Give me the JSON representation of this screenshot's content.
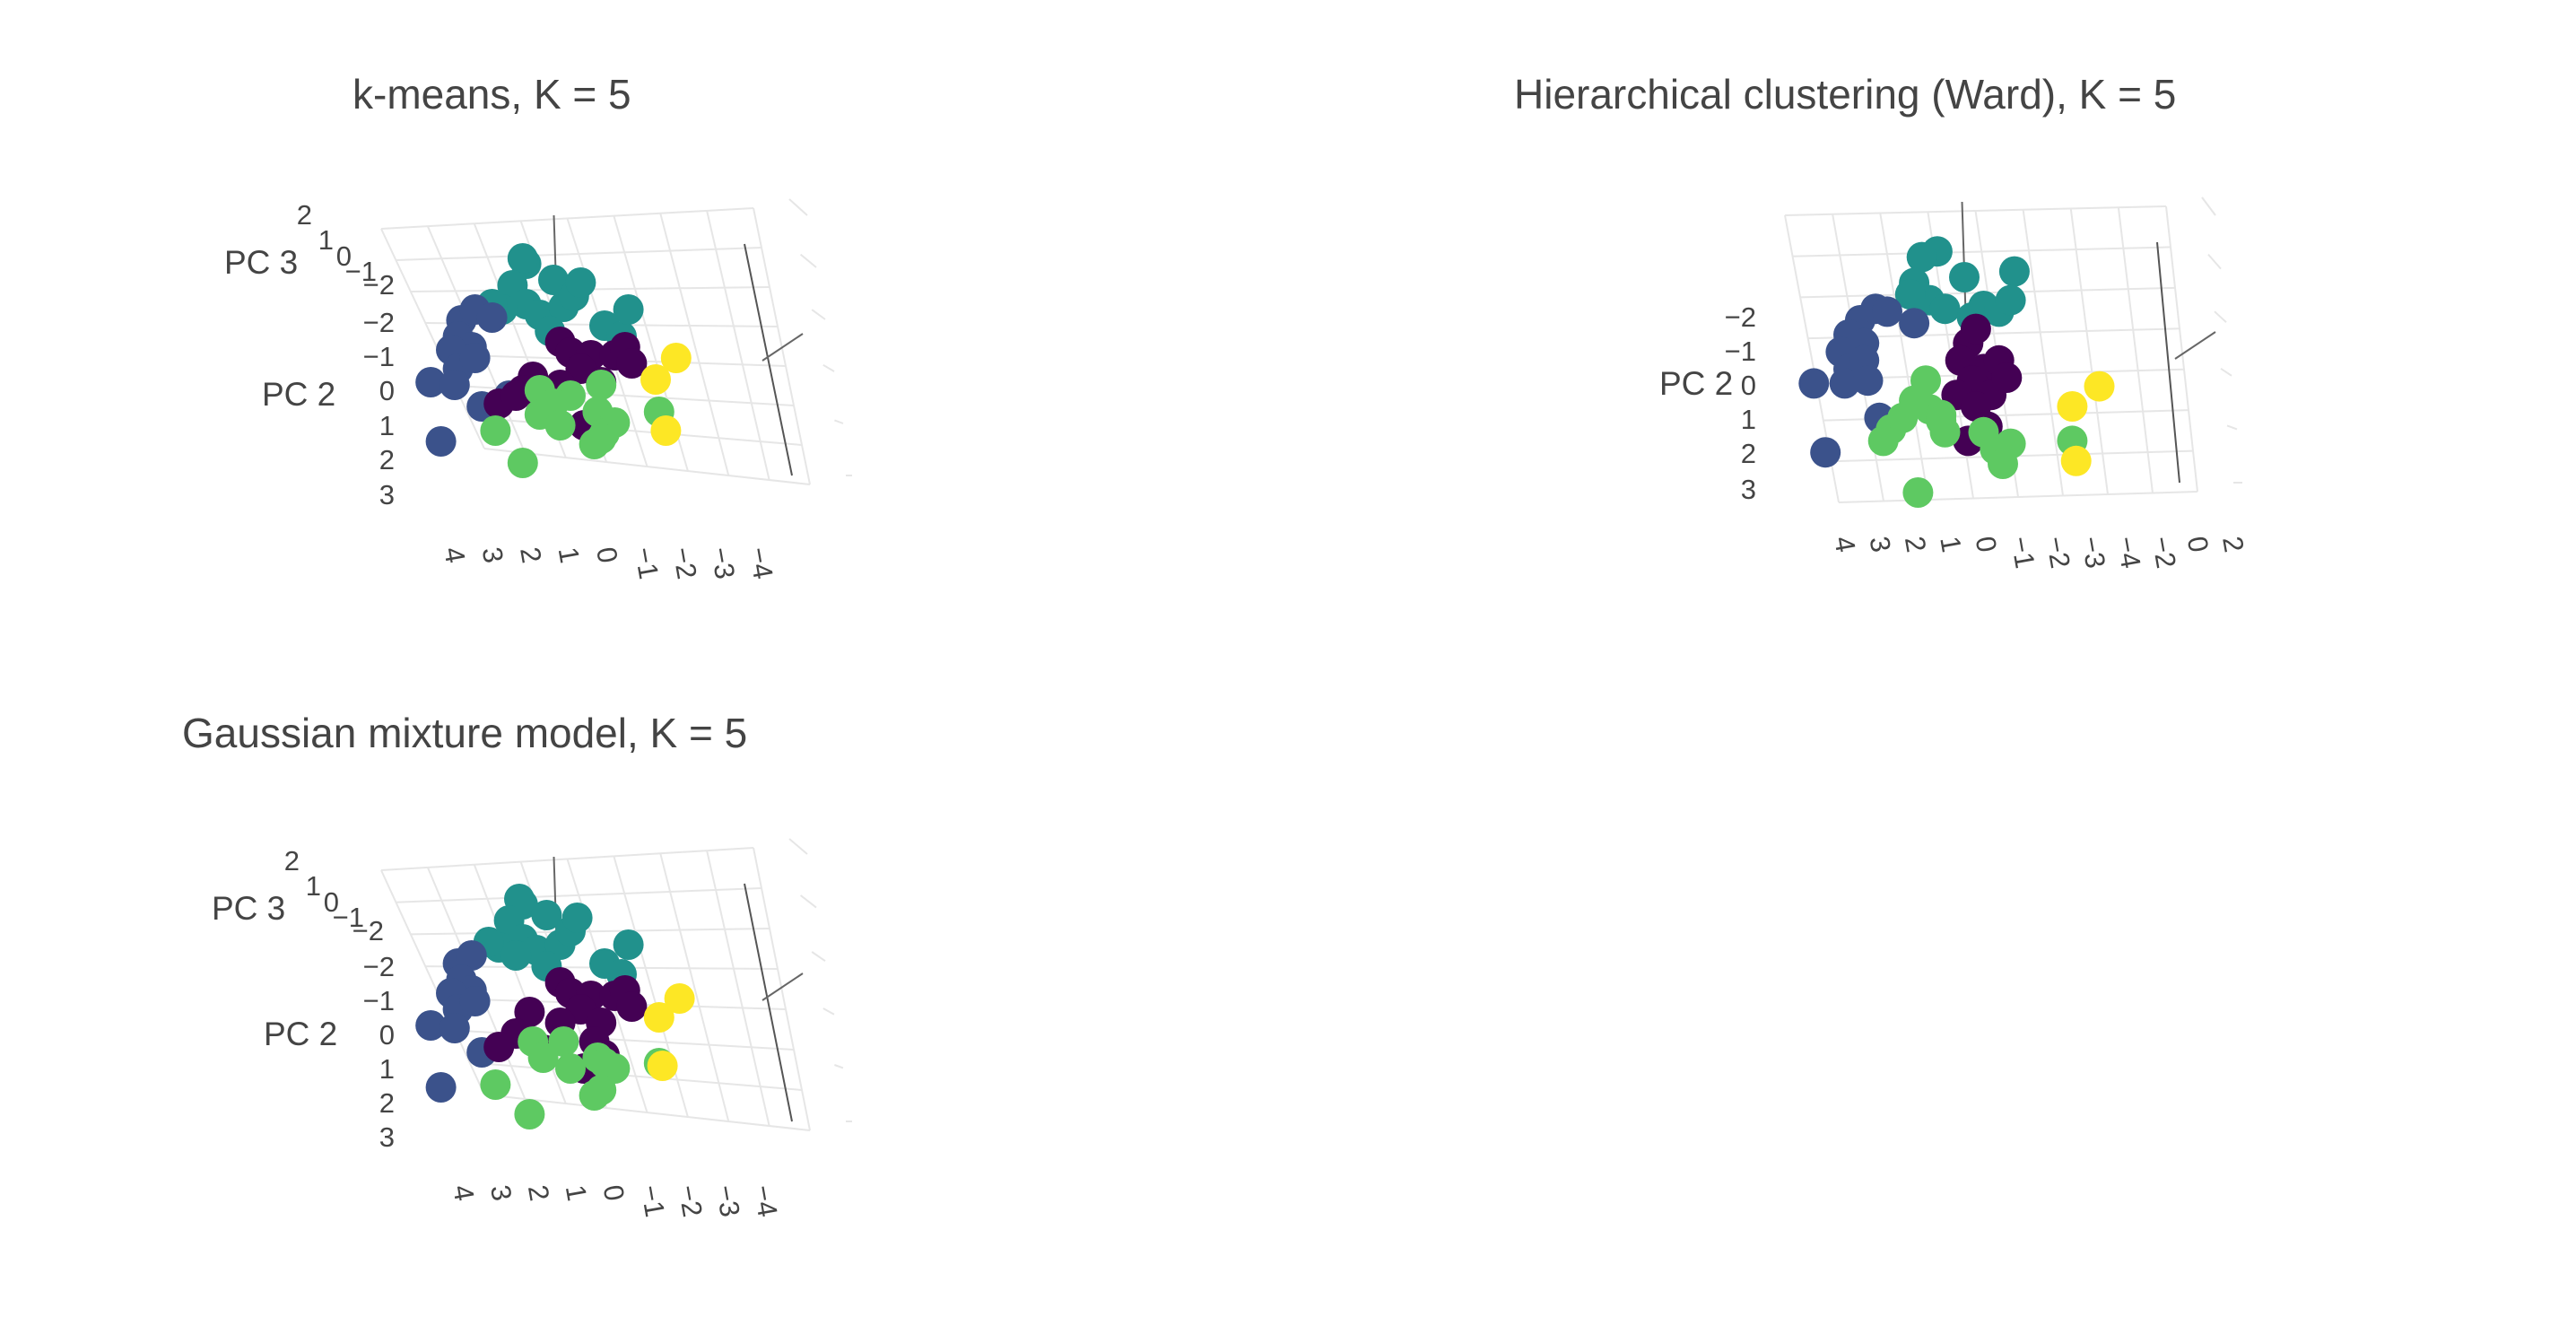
{
  "colors": {
    "c0": "#440154",
    "c1": "#3b528b",
    "c2": "#21918c",
    "c3": "#5ec962",
    "c4": "#fde725"
  },
  "chart_data": [
    {
      "type": "scatter",
      "title": "k-means, K = 5",
      "axis_titles": {
        "z": "PC 3",
        "y": "PC 2"
      },
      "ticks": {
        "z": [
          "2",
          "1",
          "0",
          "−1",
          "−2"
        ],
        "y": [
          "−2",
          "−1",
          "0",
          "1",
          "2",
          "3"
        ],
        "x": [
          "4",
          "3",
          "2",
          "1",
          "0",
          "−1",
          "−2",
          "−3",
          "−4"
        ]
      },
      "points": [
        {
          "u": 0.32,
          "v": 0.13,
          "c": 2
        },
        {
          "u": 0.31,
          "v": 0.11,
          "c": 2
        },
        {
          "u": 0.4,
          "v": 0.19,
          "c": 2
        },
        {
          "u": 0.28,
          "v": 0.21,
          "c": 2
        },
        {
          "u": 0.32,
          "v": 0.28,
          "c": 2
        },
        {
          "u": 0.36,
          "v": 0.32,
          "c": 2
        },
        {
          "u": 0.43,
          "v": 0.29,
          "c": 2
        },
        {
          "u": 0.46,
          "v": 0.25,
          "c": 2
        },
        {
          "u": 0.48,
          "v": 0.2,
          "c": 2
        },
        {
          "u": 0.39,
          "v": 0.38,
          "c": 2
        },
        {
          "u": 0.25,
          "v": 0.3,
          "c": 2
        },
        {
          "u": 0.22,
          "v": 0.28,
          "c": 2
        },
        {
          "u": 0.55,
          "v": 0.36,
          "c": 2
        },
        {
          "u": 0.6,
          "v": 0.4,
          "c": 2
        },
        {
          "u": 0.62,
          "v": 0.3,
          "c": 2
        },
        {
          "u": 0.13,
          "v": 0.34,
          "c": 1
        },
        {
          "u": 0.17,
          "v": 0.3,
          "c": 1
        },
        {
          "u": 0.22,
          "v": 0.33,
          "c": 1
        },
        {
          "u": 0.12,
          "v": 0.4,
          "c": 1
        },
        {
          "u": 0.16,
          "v": 0.44,
          "c": 1
        },
        {
          "u": 0.1,
          "v": 0.45,
          "c": 1
        },
        {
          "u": 0.12,
          "v": 0.52,
          "c": 1
        },
        {
          "u": 0.17,
          "v": 0.48,
          "c": 1
        },
        {
          "u": 0.04,
          "v": 0.57,
          "c": 1
        },
        {
          "u": 0.11,
          "v": 0.58,
          "c": 1
        },
        {
          "u": 0.19,
          "v": 0.66,
          "c": 1
        },
        {
          "u": 0.27,
          "v": 0.62,
          "c": 1
        },
        {
          "u": 0.07,
          "v": 0.79,
          "c": 1
        },
        {
          "u": 0.42,
          "v": 0.42,
          "c": 0
        },
        {
          "u": 0.45,
          "v": 0.46,
          "c": 0
        },
        {
          "u": 0.51,
          "v": 0.47,
          "c": 0
        },
        {
          "u": 0.48,
          "v": 0.52,
          "c": 0
        },
        {
          "u": 0.54,
          "v": 0.57,
          "c": 0
        },
        {
          "u": 0.42,
          "v": 0.58,
          "c": 0
        },
        {
          "u": 0.58,
          "v": 0.47,
          "c": 0
        },
        {
          "u": 0.61,
          "v": 0.44,
          "c": 0
        },
        {
          "u": 0.63,
          "v": 0.5,
          "c": 0
        },
        {
          "u": 0.34,
          "v": 0.55,
          "c": 0
        },
        {
          "u": 0.31,
          "v": 0.6,
          "c": 0
        },
        {
          "u": 0.24,
          "v": 0.65,
          "c": 0
        },
        {
          "u": 0.29,
          "v": 0.62,
          "c": 0
        },
        {
          "u": 0.53,
          "v": 0.7,
          "c": 0
        },
        {
          "u": 0.49,
          "v": 0.73,
          "c": 0
        },
        {
          "u": 0.36,
          "v": 0.6,
          "c": 3
        },
        {
          "u": 0.45,
          "v": 0.62,
          "c": 3
        },
        {
          "u": 0.4,
          "v": 0.65,
          "c": 3
        },
        {
          "u": 0.36,
          "v": 0.69,
          "c": 3
        },
        {
          "u": 0.54,
          "v": 0.58,
          "c": 3
        },
        {
          "u": 0.53,
          "v": 0.68,
          "c": 3
        },
        {
          "u": 0.58,
          "v": 0.72,
          "c": 3
        },
        {
          "u": 0.55,
          "v": 0.76,
          "c": 3
        },
        {
          "u": 0.42,
          "v": 0.73,
          "c": 3
        },
        {
          "u": 0.23,
          "v": 0.75,
          "c": 3
        },
        {
          "u": 0.52,
          "v": 0.8,
          "c": 3
        },
        {
          "u": 0.54,
          "v": 0.78,
          "c": 3
        },
        {
          "u": 0.31,
          "v": 0.87,
          "c": 3
        },
        {
          "u": 0.71,
          "v": 0.68,
          "c": 3
        },
        {
          "u": 0.76,
          "v": 0.48,
          "c": 4
        },
        {
          "u": 0.7,
          "v": 0.56,
          "c": 4
        },
        {
          "u": 0.73,
          "v": 0.75,
          "c": 4
        }
      ]
    },
    {
      "type": "scatter",
      "title": "Hierarchical clustering (Ward), K = 5",
      "axis_titles": {
        "z": "",
        "y": "PC 2"
      },
      "ticks": {
        "z": [],
        "y": [
          "−2",
          "−1",
          "0",
          "1",
          "2",
          "3"
        ],
        "x": [
          "4",
          "3",
          "2",
          "1",
          "0",
          "−1",
          "−2",
          "−3",
          "−4",
          "−2",
          "0",
          "2"
        ]
      },
      "points": [
        {
          "u": 0.43,
          "v": 0.11,
          "c": 2
        },
        {
          "u": 0.39,
          "v": 0.13,
          "c": 2
        },
        {
          "u": 0.5,
          "v": 0.2,
          "c": 2
        },
        {
          "u": 0.37,
          "v": 0.22,
          "c": 2
        },
        {
          "u": 0.41,
          "v": 0.28,
          "c": 2
        },
        {
          "u": 0.45,
          "v": 0.31,
          "c": 2
        },
        {
          "u": 0.52,
          "v": 0.34,
          "c": 2
        },
        {
          "u": 0.55,
          "v": 0.3,
          "c": 2
        },
        {
          "u": 0.59,
          "v": 0.32,
          "c": 2
        },
        {
          "u": 0.36,
          "v": 0.26,
          "c": 2
        },
        {
          "u": 0.63,
          "v": 0.18,
          "c": 2
        },
        {
          "u": 0.62,
          "v": 0.28,
          "c": 2
        },
        {
          "u": 0.23,
          "v": 0.35,
          "c": 1
        },
        {
          "u": 0.27,
          "v": 0.31,
          "c": 1
        },
        {
          "u": 0.3,
          "v": 0.32,
          "c": 1
        },
        {
          "u": 0.2,
          "v": 0.4,
          "c": 1
        },
        {
          "u": 0.24,
          "v": 0.43,
          "c": 1
        },
        {
          "u": 0.18,
          "v": 0.46,
          "c": 1
        },
        {
          "u": 0.2,
          "v": 0.52,
          "c": 1
        },
        {
          "u": 0.24,
          "v": 0.49,
          "c": 1
        },
        {
          "u": 0.11,
          "v": 0.57,
          "c": 1
        },
        {
          "u": 0.19,
          "v": 0.57,
          "c": 1
        },
        {
          "u": 0.25,
          "v": 0.56,
          "c": 1
        },
        {
          "u": 0.14,
          "v": 0.81,
          "c": 1
        },
        {
          "u": 0.28,
          "v": 0.69,
          "c": 1
        },
        {
          "u": 0.37,
          "v": 0.36,
          "c": 1
        },
        {
          "u": 0.51,
          "v": 0.43,
          "c": 0
        },
        {
          "u": 0.49,
          "v": 0.49,
          "c": 0
        },
        {
          "u": 0.55,
          "v": 0.52,
          "c": 0
        },
        {
          "u": 0.52,
          "v": 0.56,
          "c": 0
        },
        {
          "u": 0.57,
          "v": 0.61,
          "c": 0
        },
        {
          "u": 0.48,
          "v": 0.61,
          "c": 0
        },
        {
          "u": 0.59,
          "v": 0.49,
          "c": 0
        },
        {
          "u": 0.61,
          "v": 0.55,
          "c": 0
        },
        {
          "u": 0.53,
          "v": 0.65,
          "c": 0
        },
        {
          "u": 0.56,
          "v": 0.72,
          "c": 0
        },
        {
          "u": 0.51,
          "v": 0.77,
          "c": 0
        },
        {
          "u": 0.53,
          "v": 0.38,
          "c": 0
        },
        {
          "u": 0.4,
          "v": 0.56,
          "c": 3
        },
        {
          "u": 0.37,
          "v": 0.63,
          "c": 3
        },
        {
          "u": 0.41,
          "v": 0.66,
          "c": 3
        },
        {
          "u": 0.34,
          "v": 0.69,
          "c": 3
        },
        {
          "u": 0.44,
          "v": 0.68,
          "c": 3
        },
        {
          "u": 0.31,
          "v": 0.73,
          "c": 3
        },
        {
          "u": 0.29,
          "v": 0.77,
          "c": 3
        },
        {
          "u": 0.45,
          "v": 0.74,
          "c": 3
        },
        {
          "u": 0.55,
          "v": 0.74,
          "c": 3
        },
        {
          "u": 0.58,
          "v": 0.8,
          "c": 3
        },
        {
          "u": 0.6,
          "v": 0.85,
          "c": 3
        },
        {
          "u": 0.62,
          "v": 0.78,
          "c": 3
        },
        {
          "u": 0.38,
          "v": 0.95,
          "c": 3
        },
        {
          "u": 0.44,
          "v": 0.7,
          "c": 3
        },
        {
          "u": 0.78,
          "v": 0.77,
          "c": 3
        },
        {
          "u": 0.85,
          "v": 0.58,
          "c": 4
        },
        {
          "u": 0.78,
          "v": 0.65,
          "c": 4
        },
        {
          "u": 0.79,
          "v": 0.84,
          "c": 4
        }
      ]
    },
    {
      "type": "scatter",
      "title": "Gaussian mixture model, K = 5",
      "axis_titles": {
        "z": "PC 3",
        "y": "PC 2"
      },
      "ticks": {
        "z": [
          "2",
          "1",
          "0",
          "−1",
          "−2"
        ],
        "y": [
          "−2",
          "−1",
          "0",
          "1",
          "2",
          "3"
        ],
        "x": [
          "4",
          "3",
          "2",
          "1",
          "0",
          "−1",
          "−2",
          "−3",
          "−4"
        ]
      },
      "points": [
        {
          "u": 0.31,
          "v": 0.11,
          "c": 2
        },
        {
          "u": 0.3,
          "v": 0.09,
          "c": 2
        },
        {
          "u": 0.38,
          "v": 0.15,
          "c": 2
        },
        {
          "u": 0.27,
          "v": 0.17,
          "c": 2
        },
        {
          "u": 0.31,
          "v": 0.24,
          "c": 2
        },
        {
          "u": 0.35,
          "v": 0.28,
          "c": 2
        },
        {
          "u": 0.42,
          "v": 0.26,
          "c": 2
        },
        {
          "u": 0.45,
          "v": 0.21,
          "c": 2
        },
        {
          "u": 0.47,
          "v": 0.16,
          "c": 2
        },
        {
          "u": 0.38,
          "v": 0.34,
          "c": 2
        },
        {
          "u": 0.24,
          "v": 0.27,
          "c": 2
        },
        {
          "u": 0.21,
          "v": 0.25,
          "c": 2
        },
        {
          "u": 0.55,
          "v": 0.33,
          "c": 2
        },
        {
          "u": 0.6,
          "v": 0.37,
          "c": 2
        },
        {
          "u": 0.62,
          "v": 0.26,
          "c": 2
        },
        {
          "u": 0.29,
          "v": 0.3,
          "c": 2
        },
        {
          "u": 0.12,
          "v": 0.33,
          "c": 1
        },
        {
          "u": 0.16,
          "v": 0.3,
          "c": 1
        },
        {
          "u": 0.13,
          "v": 0.39,
          "c": 1
        },
        {
          "u": 0.16,
          "v": 0.43,
          "c": 1
        },
        {
          "u": 0.1,
          "v": 0.44,
          "c": 1
        },
        {
          "u": 0.12,
          "v": 0.5,
          "c": 1
        },
        {
          "u": 0.17,
          "v": 0.47,
          "c": 1
        },
        {
          "u": 0.04,
          "v": 0.56,
          "c": 1
        },
        {
          "u": 0.11,
          "v": 0.57,
          "c": 1
        },
        {
          "u": 0.19,
          "v": 0.66,
          "c": 1
        },
        {
          "u": 0.07,
          "v": 0.79,
          "c": 1
        },
        {
          "u": 0.42,
          "v": 0.4,
          "c": 0
        },
        {
          "u": 0.45,
          "v": 0.44,
          "c": 0
        },
        {
          "u": 0.51,
          "v": 0.45,
          "c": 0
        },
        {
          "u": 0.48,
          "v": 0.5,
          "c": 0
        },
        {
          "u": 0.54,
          "v": 0.55,
          "c": 0
        },
        {
          "u": 0.42,
          "v": 0.55,
          "c": 0
        },
        {
          "u": 0.58,
          "v": 0.45,
          "c": 0
        },
        {
          "u": 0.61,
          "v": 0.43,
          "c": 0
        },
        {
          "u": 0.63,
          "v": 0.49,
          "c": 0
        },
        {
          "u": 0.33,
          "v": 0.51,
          "c": 0
        },
        {
          "u": 0.29,
          "v": 0.59,
          "c": 0
        },
        {
          "u": 0.24,
          "v": 0.64,
          "c": 0
        },
        {
          "u": 0.52,
          "v": 0.62,
          "c": 0
        },
        {
          "u": 0.49,
          "v": 0.72,
          "c": 0
        },
        {
          "u": 0.55,
          "v": 0.67,
          "c": 0
        },
        {
          "u": 0.37,
          "v": 0.65,
          "c": 0
        },
        {
          "u": 0.34,
          "v": 0.62,
          "c": 3
        },
        {
          "u": 0.43,
          "v": 0.62,
          "c": 3
        },
        {
          "u": 0.37,
          "v": 0.68,
          "c": 3
        },
        {
          "u": 0.53,
          "v": 0.68,
          "c": 3
        },
        {
          "u": 0.58,
          "v": 0.72,
          "c": 3
        },
        {
          "u": 0.55,
          "v": 0.7,
          "c": 3
        },
        {
          "u": 0.23,
          "v": 0.78,
          "c": 3
        },
        {
          "u": 0.52,
          "v": 0.82,
          "c": 3
        },
        {
          "u": 0.54,
          "v": 0.8,
          "c": 3
        },
        {
          "u": 0.33,
          "v": 0.89,
          "c": 3
        },
        {
          "u": 0.71,
          "v": 0.7,
          "c": 3
        },
        {
          "u": 0.45,
          "v": 0.72,
          "c": 3
        },
        {
          "u": 0.77,
          "v": 0.46,
          "c": 4
        },
        {
          "u": 0.71,
          "v": 0.53,
          "c": 4
        },
        {
          "u": 0.72,
          "v": 0.71,
          "c": 4
        }
      ]
    }
  ]
}
